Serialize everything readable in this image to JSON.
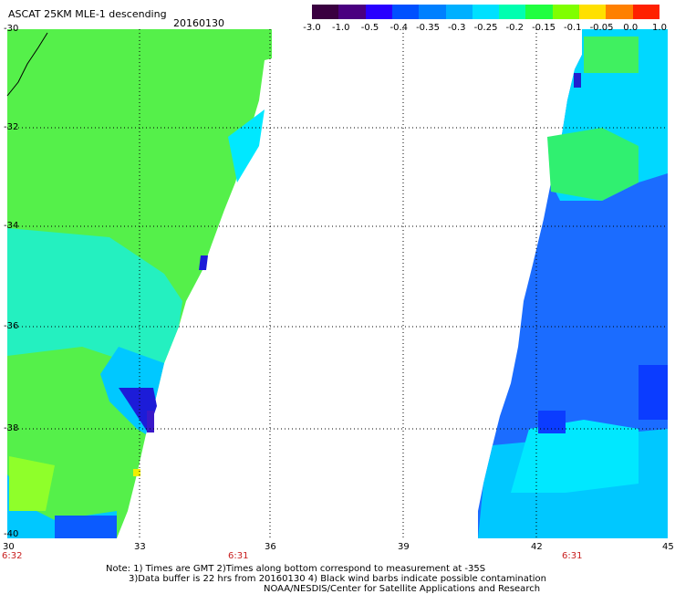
{
  "header": {
    "title": "ASCAT 25KM MLE-1 descending",
    "date": "20160130"
  },
  "colorbar": {
    "tick_labels": [
      "-3.0",
      "-1.0",
      "-0.5",
      "-0.4",
      "-0.35",
      "-0.3",
      "-0.25",
      "-0.2",
      "-0.15",
      "-0.1",
      "-0.05",
      "0.0",
      "1.0"
    ],
    "colors": [
      "#3a0040",
      "#4a0080",
      "#2800ff",
      "#0050ff",
      "#0080ff",
      "#00b0ff",
      "#00e0ff",
      "#00ffb0",
      "#20ff40",
      "#80ff00",
      "#ffe000",
      "#ff8000",
      "#ff2000"
    ]
  },
  "axes": {
    "y_labels": [
      "-30",
      "-32",
      "-34",
      "-36",
      "-38",
      "-40"
    ],
    "x_labels": [
      "30",
      "33",
      "36",
      "39",
      "42",
      "45"
    ],
    "times": [
      "6:32",
      "6:31",
      "6:31"
    ]
  },
  "notes": {
    "line1": "Note: 1) Times are GMT 2)Times along bottom correspond to measurement at -35S",
    "line2": "3)Data buffer is 22 hrs from 20160130 4) Black wind barbs indicate possible contamination",
    "line3": "NOAA/NESDIS/Center for Satellite Applications and Research"
  }
}
